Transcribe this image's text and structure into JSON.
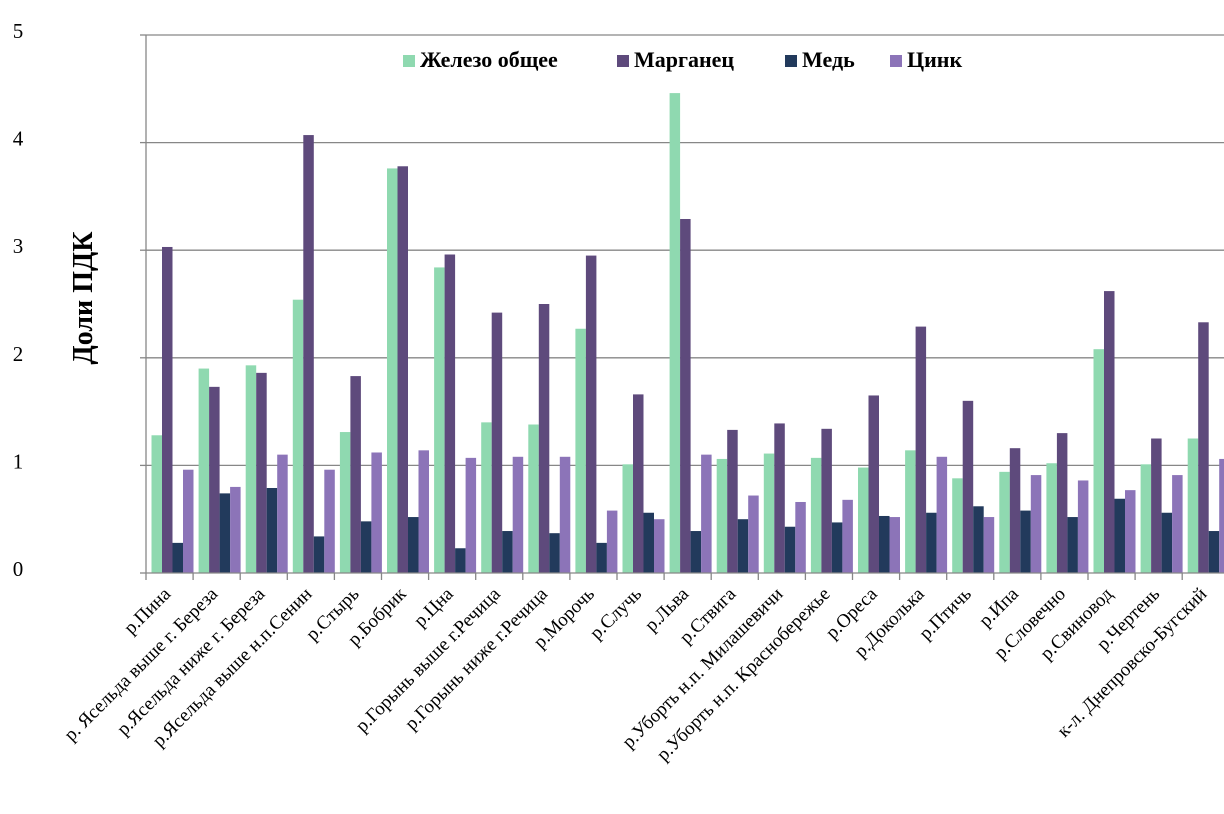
{
  "chart_data": {
    "type": "bar",
    "title": "",
    "xlabel": "",
    "ylabel": "Доли ПДК",
    "ylim": [
      0,
      5
    ],
    "yticks": [
      0,
      1,
      2,
      3,
      4,
      5
    ],
    "grid": true,
    "legend": "top-center",
    "categories": [
      "р.Пина",
      "р. Ясельда выше г. Береза",
      "р.Ясельда ниже г. Береза",
      "р.Ясельда выше н.п.Сенин",
      "р.Стырь",
      "р.Бобрик",
      "р.Цна",
      "р.Горынь выше г.Речица",
      "р.Горынь ниже г.Речица",
      "р.Морочь",
      "р.Случь",
      "р.Льва",
      "р.Ствига",
      "р.Уборть н.п. Милашевичи",
      "р.Уборть н.п. Краснобережье",
      "р.Ореса",
      "р.Доколька",
      "р.Птичь",
      "р.Ипа",
      "р.Словечно",
      "р.Свиновод",
      "р.Чертень",
      "к-л. Днепровско-Бугский"
    ],
    "series": [
      {
        "name": "Железо общее",
        "color": "#8fd9b0",
        "values": [
          1.28,
          1.9,
          1.93,
          2.54,
          1.31,
          3.76,
          2.84,
          1.4,
          1.38,
          2.27,
          1.01,
          4.46,
          1.06,
          1.11,
          1.07,
          0.98,
          1.14,
          0.88,
          0.94,
          1.02,
          2.08,
          1.01,
          1.25
        ]
      },
      {
        "name": "Марганец",
        "color": "#5e4a7c",
        "values": [
          3.03,
          1.73,
          1.86,
          4.07,
          1.83,
          3.78,
          2.96,
          2.42,
          2.5,
          2.95,
          1.66,
          3.29,
          1.33,
          1.39,
          1.34,
          1.65,
          2.29,
          1.6,
          1.16,
          1.3,
          2.62,
          1.25,
          2.33
        ]
      },
      {
        "name": "Медь",
        "color": "#223a5c",
        "values": [
          0.28,
          0.74,
          0.79,
          0.34,
          0.48,
          0.52,
          0.23,
          0.39,
          0.37,
          0.28,
          0.56,
          0.39,
          0.5,
          0.43,
          0.47,
          0.53,
          0.56,
          0.62,
          0.58,
          0.52,
          0.69,
          0.56,
          0.39
        ]
      },
      {
        "name": "Цинк",
        "color": "#8c74b8",
        "values": [
          0.96,
          0.8,
          1.1,
          0.96,
          1.12,
          1.14,
          1.07,
          1.08,
          1.08,
          0.58,
          0.5,
          1.1,
          0.72,
          0.66,
          0.68,
          0.52,
          1.08,
          0.52,
          0.91,
          0.86,
          0.77,
          0.91,
          1.06
        ]
      }
    ]
  }
}
